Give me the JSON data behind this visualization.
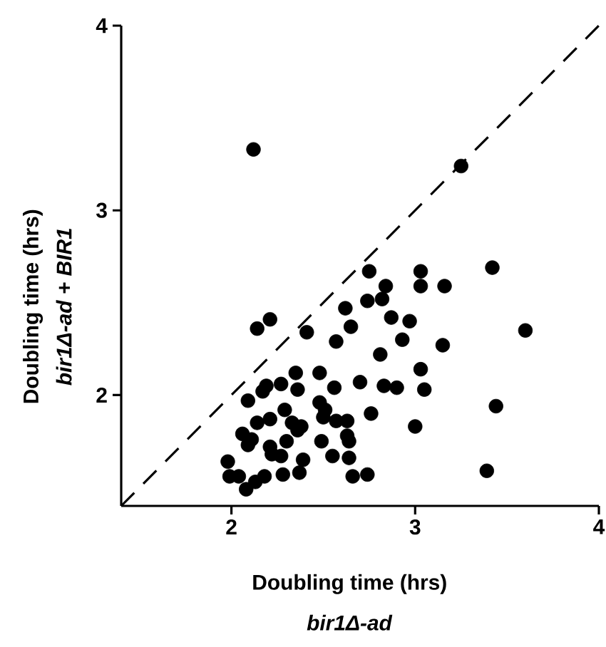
{
  "chart_data": {
    "type": "scatter",
    "xlabel": "Doubling time (hrs)",
    "ylabel": "Doubling time (hrs)",
    "annotations": [
      "*bir1Δ-ad*",
      "*bir1Δ-ad + BIR1*"
    ],
    "xlim": [
      1.4,
      4
    ],
    "ylim": [
      1.4,
      4
    ],
    "xticks": [
      2,
      3,
      4
    ],
    "yticks": [
      2,
      3,
      4
    ],
    "grid": false,
    "series": [
      {
        "color": "#000000",
        "marker": "circle",
        "x": [
          2.12,
          3.25,
          2.75,
          2.84,
          2.74,
          2.82,
          2.62,
          2.87,
          2.65,
          2.57,
          2.21,
          2.14,
          2.41,
          2.81,
          2.35,
          2.48,
          2.7,
          2.83,
          2.56,
          2.27,
          2.19,
          2.17,
          2.36,
          2.09,
          2.48,
          2.51,
          2.29,
          2.76,
          2.14,
          2.21,
          2.33,
          2.5,
          2.57,
          2.63,
          2.38,
          2.36,
          2.06,
          2.11,
          2.09,
          2.63,
          2.49,
          2.64,
          2.3,
          2.21,
          2.22,
          2.27,
          2.39,
          2.55,
          2.64,
          1.98,
          1.99,
          2.04,
          2.28,
          2.37,
          2.66,
          2.74,
          2.08,
          2.13,
          2.18,
          3.42,
          3.03,
          3.03,
          3.16,
          2.97,
          3.6,
          2.93,
          3.15,
          3.03,
          2.9,
          3.05,
          3.44,
          3.0,
          3.39
        ],
        "values": [
          3.33,
          3.24,
          2.67,
          2.59,
          2.51,
          2.52,
          2.47,
          2.42,
          2.37,
          2.29,
          2.41,
          2.36,
          2.34,
          2.22,
          2.12,
          2.12,
          2.07,
          2.05,
          2.04,
          2.06,
          2.05,
          2.02,
          2.03,
          1.97,
          1.96,
          1.92,
          1.92,
          1.9,
          1.85,
          1.87,
          1.85,
          1.88,
          1.86,
          1.86,
          1.83,
          1.81,
          1.79,
          1.76,
          1.73,
          1.78,
          1.75,
          1.75,
          1.75,
          1.72,
          1.68,
          1.67,
          1.65,
          1.67,
          1.66,
          1.64,
          1.56,
          1.56,
          1.57,
          1.58,
          1.56,
          1.57,
          1.49,
          1.53,
          1.56,
          2.69,
          2.67,
          2.59,
          2.59,
          2.4,
          2.35,
          2.3,
          2.27,
          2.14,
          2.04,
          2.03,
          1.94,
          1.83,
          1.59
        ]
      },
      {
        "type": "line",
        "color": "#000000",
        "line_style": "dashed",
        "marker": "none",
        "x": [
          1.4,
          4
        ],
        "values": [
          1.4,
          4
        ]
      }
    ]
  }
}
